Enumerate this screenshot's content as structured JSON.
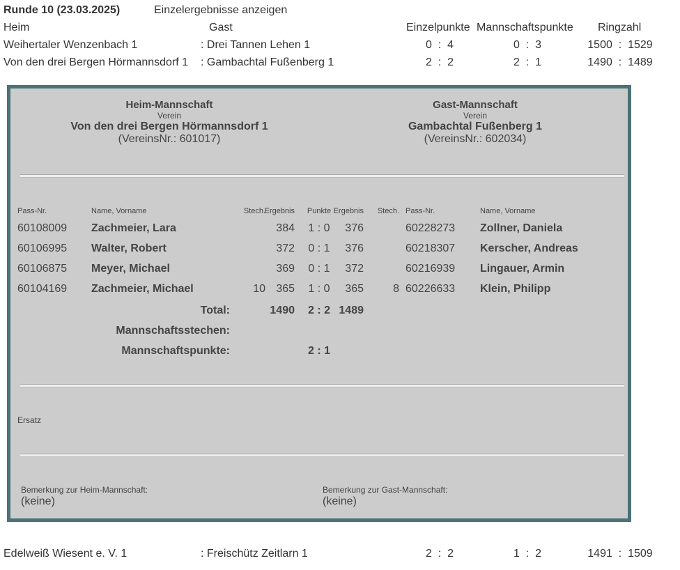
{
  "round": {
    "title": "Runde 10  (23.03.2025)",
    "link": "Einzelergebnisse anzeigen"
  },
  "header": {
    "heim": "Heim",
    "gast": "Gast",
    "einzel": "Einzelpunkte",
    "mannschaft": "Mannschaftspunkte",
    "ring": "Ringzahl"
  },
  "matches": [
    {
      "heim": "Weihertaler Wenzenbach 1",
      "gast": "Drei Tannen Lehen 1",
      "einzel": "0  :  4",
      "mann": "0  :  3",
      "ring": "1500  :  1529"
    },
    {
      "heim": "Von den drei Bergen Hörmannsdorf 1",
      "gast": "Gambachtal Fußenberg 1",
      "einzel": "2  :  2",
      "mann": "2  :  1",
      "ring": "1490  :  1489"
    },
    {
      "heim": "Edelweiß Wiesent e. V. 1",
      "gast": "Freischütz Zeitlarn 1",
      "einzel": "2  :  2",
      "mann": "1  :  2",
      "ring": "1491  :  1509"
    }
  ],
  "detail": {
    "heim": {
      "title": "Heim-Mannschaft",
      "verein_label": "Verein",
      "name": "Von den drei Bergen Hörmannsdorf 1",
      "nr": "(VereinsNr.: 601017)"
    },
    "gast": {
      "title": "Gast-Mannschaft",
      "verein_label": "Verein",
      "name": "Gambachtal Fußenberg 1",
      "nr": "(VereinsNr.: 602034)"
    },
    "columns": [
      "Pass-Nr.",
      "Name, Vorname",
      "Stech.",
      "Ergebnis",
      "Punkte",
      "Ergebnis",
      "Stech.",
      "Pass-Nr.",
      "Name, Vorname"
    ],
    "rows": [
      [
        "60108009",
        "Zachmeier, Lara",
        "",
        "384",
        "1 : 0",
        "376",
        "",
        "60228273",
        "Zollner, Daniela"
      ],
      [
        "60106995",
        "Walter, Robert",
        "",
        "372",
        "0 : 1",
        "376",
        "",
        "60218307",
        "Kerscher, Andreas"
      ],
      [
        "60106875",
        "Meyer, Michael",
        "",
        "369",
        "0 : 1",
        "372",
        "",
        "60216939",
        "Lingauer, Armin"
      ],
      [
        "60104169",
        "Zachmeier, Michael",
        "10",
        "365",
        "1 : 0",
        "365",
        "8",
        "60226633",
        "Klein, Philipp"
      ]
    ],
    "total": {
      "label": "Total:",
      "heim": "1490",
      "punkte": "2 : 2",
      "gast": "1489"
    },
    "stechen": {
      "label": "Mannschaftsstechen:"
    },
    "mpunkte": {
      "label": "Mannschaftspunkte:",
      "value": "2 : 1"
    },
    "ersatz": "Ersatz",
    "bem_heim": {
      "label": "Bemerkung zur Heim-Mannschaft:",
      "value": "(keine)"
    },
    "bem_gast": {
      "label": "Bemerkung zur Gast-Mannschaft:",
      "value": "(keine)"
    }
  }
}
